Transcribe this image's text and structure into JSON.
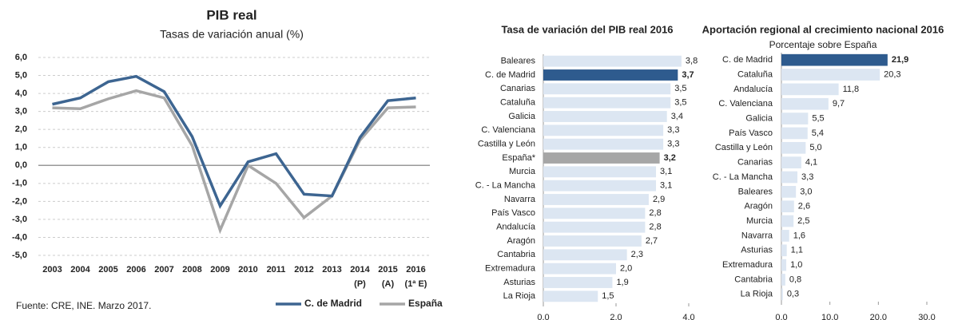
{
  "chart_data": [
    {
      "type": "line",
      "title": "PIB real",
      "subtitle": "Tasas de variación anual (%)",
      "categories": [
        "2003",
        "2004",
        "2005",
        "2006",
        "2007",
        "2008",
        "2009",
        "2010",
        "2011",
        "2012",
        "2013",
        "2014",
        "2015",
        "2016"
      ],
      "x_sublabels": [
        null,
        null,
        null,
        null,
        null,
        null,
        null,
        null,
        null,
        null,
        null,
        "(P)",
        "(A)",
        "(1ª E)"
      ],
      "series": [
        {
          "name": "C. de Madrid",
          "color": "#3d6591",
          "values": [
            3.4,
            3.75,
            4.65,
            4.95,
            4.1,
            1.6,
            -2.25,
            0.2,
            0.65,
            -1.6,
            -1.7,
            1.55,
            3.6,
            3.75
          ]
        },
        {
          "name": "España",
          "color": "#a6a6a6",
          "values": [
            3.2,
            3.15,
            3.7,
            4.15,
            3.75,
            1.1,
            -3.6,
            0.0,
            -1.0,
            -2.9,
            -1.7,
            1.4,
            3.2,
            3.25
          ]
        }
      ],
      "ylim": [
        -5,
        6
      ],
      "yticks": [
        {
          "value": 6,
          "label": "6,0"
        },
        {
          "value": 5,
          "label": "5,0"
        },
        {
          "value": 4,
          "label": "4,0"
        },
        {
          "value": 3,
          "label": "3,0"
        },
        {
          "value": 2,
          "label": "2,0"
        },
        {
          "value": 1,
          "label": "1,0"
        },
        {
          "value": 0,
          "label": "0,0"
        },
        {
          "value": -1,
          "label": "-1,0"
        },
        {
          "value": -2,
          "label": "-2,0"
        },
        {
          "value": -3,
          "label": "-3,0"
        },
        {
          "value": -4,
          "label": "-4,0"
        },
        {
          "value": -5,
          "label": "-5,0"
        }
      ],
      "grid": true,
      "legend": "bottom-right",
      "source": "Fuente: CRE, INE. Marzo 2017."
    },
    {
      "type": "barh",
      "title": "Tasa de variación del PIB real 2016",
      "categories": [
        "Baleares",
        "C. de Madrid",
        "Canarias",
        "Cataluña",
        "Galicia",
        "C. Valenciana",
        "Castilla y León",
        "España*",
        "Murcia",
        "C. - La Mancha",
        "Navarra",
        "País Vasco",
        "Andalucía",
        "Aragón",
        "Cantabria",
        "Extremadura",
        "Asturias",
        "La Rioja"
      ],
      "values": [
        3.8,
        3.7,
        3.5,
        3.5,
        3.4,
        3.3,
        3.3,
        3.2,
        3.1,
        3.1,
        2.9,
        2.8,
        2.8,
        2.7,
        2.3,
        2.0,
        1.9,
        1.5
      ],
      "value_labels": [
        "3,8",
        "3,7",
        "3,5",
        "3,5",
        "3,4",
        "3,3",
        "3,3",
        "3,2",
        "3,1",
        "3,1",
        "2,9",
        "2,8",
        "2,8",
        "2,7",
        "2,3",
        "2,0",
        "1,9",
        "1,5"
      ],
      "color": "#dce6f2",
      "colors": [
        "#dce6f2",
        "#2e5b8e",
        "#dce6f2",
        "#dce6f2",
        "#dce6f2",
        "#dce6f2",
        "#dce6f2",
        "#a6a6a6",
        "#dce6f2",
        "#dce6f2",
        "#dce6f2",
        "#dce6f2",
        "#dce6f2",
        "#dce6f2",
        "#dce6f2",
        "#dce6f2",
        "#dce6f2",
        "#dce6f2"
      ],
      "xlim": [
        0,
        4
      ],
      "xticks": [
        {
          "value": 0,
          "label": "0,0"
        },
        {
          "value": 2,
          "label": "2,0"
        },
        {
          "value": 4,
          "label": "4,0"
        }
      ]
    },
    {
      "type": "barh",
      "title": "Aportación regional al crecimiento nacional 2016",
      "subtitle": "Porcentaje sobre España",
      "categories": [
        "C. de Madrid",
        "Cataluña",
        "Andalucía",
        "C. Valenciana",
        "Galicia",
        "País Vasco",
        "Castilla y León",
        "Canarias",
        "C. - La Mancha",
        "Baleares",
        "Aragón",
        "Murcia",
        "Navarra",
        "Asturias",
        "Extremadura",
        "Cantabria",
        "La Rioja"
      ],
      "values": [
        21.9,
        20.3,
        11.8,
        9.7,
        5.5,
        5.4,
        5.0,
        4.1,
        3.3,
        3.0,
        2.6,
        2.5,
        1.6,
        1.1,
        1.0,
        0.8,
        0.3
      ],
      "value_labels": [
        "21,9",
        "20,3",
        "11,8",
        "9,7",
        "5,5",
        "5,4",
        "5,0",
        "4,1",
        "3,3",
        "3,0",
        "2,6",
        "2,5",
        "1,6",
        "1,1",
        "1,0",
        "0,8",
        "0,3"
      ],
      "color": "#dce6f2",
      "colors": [
        "#2e5b8e",
        "#dce6f2",
        "#dce6f2",
        "#dce6f2",
        "#dce6f2",
        "#dce6f2",
        "#dce6f2",
        "#dce6f2",
        "#dce6f2",
        "#dce6f2",
        "#dce6f2",
        "#dce6f2",
        "#dce6f2",
        "#dce6f2",
        "#dce6f2",
        "#dce6f2",
        "#dce6f2"
      ],
      "xlim": [
        0,
        30
      ],
      "xticks": [
        {
          "value": 0,
          "label": "0,0"
        },
        {
          "value": 10,
          "label": "10,0"
        },
        {
          "value": 20,
          "label": "20,0"
        },
        {
          "value": 30,
          "label": "30,0"
        }
      ]
    }
  ]
}
